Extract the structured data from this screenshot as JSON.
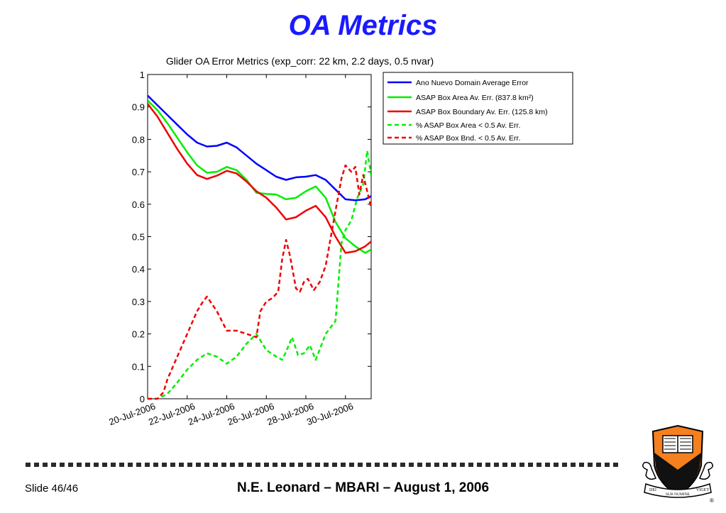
{
  "slide": {
    "title": "OA Metrics",
    "slide_number": "Slide 46/46",
    "footer": "N.E. Leonard – MBARI –  August 1, 2006",
    "logo": {
      "icon": "princeton-shield-icon",
      "motto_left": "DEI",
      "motto_center": "SUB NUMINE",
      "motto_right": "VIGET",
      "registered_mark": "®"
    }
  },
  "chart_data": {
    "type": "line",
    "title": "Glider OA Error Metrics (exp_corr: 22 km, 2.2 days, 0.5 nvar)",
    "xlabel": "",
    "ylabel": "",
    "x_unit": "days since 20-Jul-2006",
    "xlim": [
      0,
      11.3
    ],
    "ylim": [
      0,
      1
    ],
    "x_ticks": [
      0,
      2,
      4,
      6,
      8,
      10
    ],
    "x_tick_labels": [
      "20-Jul-2006",
      "22-Jul-2006",
      "24-Jul-2006",
      "26-Jul-2006",
      "28-Jul-2006",
      "30-Jul-2006"
    ],
    "y_ticks": [
      0,
      0.1,
      0.2,
      0.3,
      0.4,
      0.5,
      0.6,
      0.7,
      0.8,
      0.9,
      1
    ],
    "y_tick_labels": [
      "0",
      "0.1",
      "0.2",
      "0.3",
      "0.4",
      "0.5",
      "0.6",
      "0.7",
      "0.8",
      "0.9",
      "1"
    ],
    "grid": false,
    "legend_position": "outside-right-top",
    "series": [
      {
        "name": "Ano Nuevo Domain Average Error",
        "color": "#0000ff",
        "dash": "solid",
        "x": [
          0,
          0.5,
          1,
          1.5,
          2,
          2.5,
          3,
          3.5,
          4,
          4.5,
          5,
          5.5,
          6,
          6.5,
          7,
          7.5,
          8,
          8.5,
          9,
          9.5,
          10,
          10.5,
          11,
          11.3
        ],
        "y": [
          0.935,
          0.905,
          0.875,
          0.845,
          0.815,
          0.79,
          0.778,
          0.78,
          0.79,
          0.775,
          0.75,
          0.725,
          0.705,
          0.685,
          0.675,
          0.683,
          0.685,
          0.69,
          0.675,
          0.645,
          0.615,
          0.612,
          0.615,
          0.625
        ]
      },
      {
        "name": "ASAP Box Area Av. Err. (837.8 km²)",
        "color": "#00ee00",
        "dash": "solid",
        "x": [
          0,
          0.5,
          1,
          1.5,
          2,
          2.5,
          3,
          3.5,
          4,
          4.5,
          5,
          5.5,
          6,
          6.5,
          7,
          7.5,
          8,
          8.5,
          9,
          9.5,
          10,
          10.5,
          11,
          11.3
        ],
        "y": [
          0.92,
          0.89,
          0.85,
          0.805,
          0.76,
          0.72,
          0.697,
          0.7,
          0.715,
          0.705,
          0.675,
          0.635,
          0.632,
          0.63,
          0.615,
          0.62,
          0.64,
          0.655,
          0.62,
          0.545,
          0.495,
          0.47,
          0.45,
          0.46
        ]
      },
      {
        "name": "ASAP Box Boundary Av. Err. (125.8 km)",
        "color": "#ee0000",
        "dash": "solid",
        "x": [
          0,
          0.5,
          1,
          1.5,
          2,
          2.5,
          3,
          3.5,
          4,
          4.5,
          5,
          5.5,
          6,
          6.5,
          7,
          7.5,
          8,
          8.5,
          9,
          9.5,
          10,
          10.5,
          11,
          11.3
        ],
        "y": [
          0.91,
          0.87,
          0.82,
          0.77,
          0.725,
          0.69,
          0.678,
          0.688,
          0.703,
          0.695,
          0.67,
          0.64,
          0.62,
          0.59,
          0.553,
          0.56,
          0.58,
          0.595,
          0.56,
          0.5,
          0.45,
          0.455,
          0.47,
          0.485
        ]
      },
      {
        "name": "% ASAP Box Area < 0.5 Av. Err.",
        "color": "#00ee00",
        "dash": "dashed",
        "x": [
          0,
          0.5,
          1,
          1.5,
          2,
          2.5,
          3,
          3.5,
          4,
          4.5,
          5,
          5.5,
          6,
          6.5,
          6.8,
          7,
          7.3,
          7.6,
          7.9,
          8.2,
          8.5,
          9,
          9.5,
          9.8,
          10,
          10.3,
          10.6,
          10.9,
          11.1,
          11.3
        ],
        "y": [
          0,
          0,
          0.015,
          0.05,
          0.09,
          0.12,
          0.14,
          0.13,
          0.108,
          0.13,
          0.17,
          0.2,
          0.15,
          0.13,
          0.12,
          0.145,
          0.19,
          0.135,
          0.14,
          0.165,
          0.12,
          0.2,
          0.24,
          0.48,
          0.52,
          0.55,
          0.62,
          0.66,
          0.765,
          0.69
        ]
      },
      {
        "name": "% ASAP Box Bnd. < 0.5 Av. Err.",
        "color": "#ee0000",
        "dash": "dashed",
        "x": [
          0,
          0.5,
          0.8,
          1,
          1.5,
          2,
          2.5,
          2.8,
          3,
          3.5,
          4,
          4.5,
          5,
          5.5,
          5.7,
          6,
          6.3,
          6.6,
          6.8,
          7,
          7.2,
          7.5,
          7.7,
          7.9,
          8.1,
          8.4,
          8.7,
          9,
          9.5,
          9.8,
          10,
          10.3,
          10.5,
          10.7,
          10.9,
          11.1,
          11.3
        ],
        "y": [
          0,
          0,
          0.02,
          0.06,
          0.13,
          0.2,
          0.27,
          0.3,
          0.315,
          0.27,
          0.21,
          0.21,
          0.2,
          0.19,
          0.27,
          0.3,
          0.31,
          0.33,
          0.43,
          0.49,
          0.44,
          0.34,
          0.33,
          0.36,
          0.37,
          0.335,
          0.36,
          0.41,
          0.58,
          0.68,
          0.72,
          0.7,
          0.715,
          0.63,
          0.69,
          0.64,
          0.59
        ]
      }
    ]
  }
}
